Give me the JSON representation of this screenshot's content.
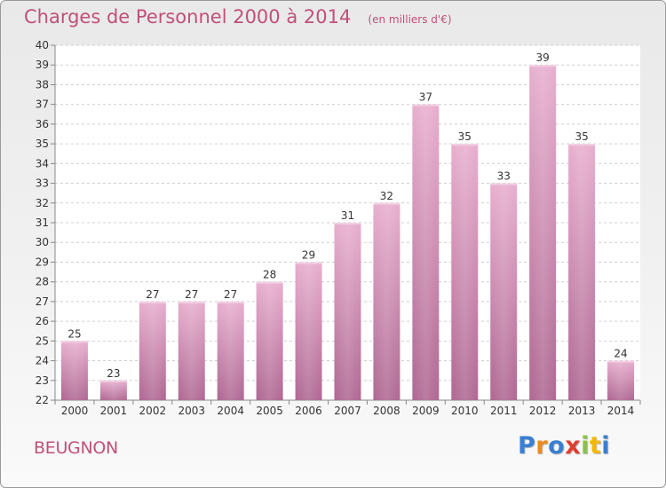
{
  "title": "Charges de Personnel 2000 à 2014",
  "unit_note": "(en milliers d'€)",
  "town": "BEUGNON",
  "logo": {
    "text": "Proxiti",
    "letters": [
      {
        "ch": "P",
        "color": "#3a7fd1"
      },
      {
        "ch": "r",
        "color": "#f08a1c"
      },
      {
        "ch": "o",
        "color": "#3a7fd1"
      },
      {
        "ch": "x",
        "color": "#e03c31"
      },
      {
        "ch": "i",
        "color": "#8bc34a"
      },
      {
        "ch": "t",
        "color": "#f5b800"
      },
      {
        "ch": "i",
        "color": "#3a7fd1"
      }
    ]
  },
  "colors": {
    "bar_top": "#e8b0cf",
    "bar_bottom": "#b06a94",
    "accent": "#c0507a"
  },
  "chart_data": {
    "type": "bar",
    "categories": [
      "2000",
      "2001",
      "2002",
      "2003",
      "2004",
      "2005",
      "2006",
      "2007",
      "2008",
      "2009",
      "2010",
      "2011",
      "2012",
      "2013",
      "2014"
    ],
    "values": [
      25,
      23,
      27,
      27,
      27,
      28,
      29,
      31,
      32,
      37,
      35,
      33,
      39,
      35,
      24
    ],
    "ylim": [
      22,
      40
    ],
    "yticks": [
      22,
      23,
      24,
      25,
      26,
      27,
      28,
      29,
      30,
      31,
      32,
      33,
      34,
      35,
      36,
      37,
      38,
      39,
      40
    ],
    "grid": true
  }
}
